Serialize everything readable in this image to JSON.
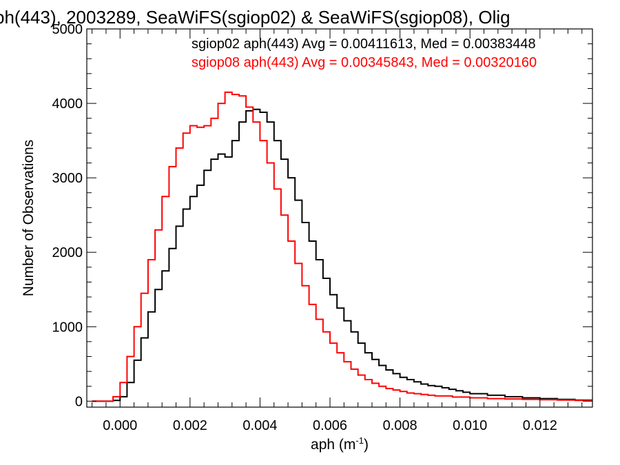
{
  "chart_data": {
    "type": "line",
    "title": "ph(443), 2003289, SeaWiFS(sgiop02) & SeaWiFS(sgiop08), Olig",
    "xlabel": "aph (m",
    "xlabel_sup": "-1",
    "xlabel_close": ")",
    "ylabel": "Number of Observations",
    "xlim": [
      -0.00095,
      0.0135
    ],
    "ylim": [
      -80,
      5000
    ],
    "x_ticks": [
      {
        "value": 0.0,
        "label": "0.000"
      },
      {
        "value": 0.002,
        "label": "0.002"
      },
      {
        "value": 0.004,
        "label": "0.004"
      },
      {
        "value": 0.006,
        "label": "0.006"
      },
      {
        "value": 0.008,
        "label": "0.008"
      },
      {
        "value": 0.01,
        "label": "0.010"
      },
      {
        "value": 0.012,
        "label": "0.012"
      }
    ],
    "y_ticks": [
      {
        "value": 0,
        "label": "0"
      },
      {
        "value": 1000,
        "label": "1000"
      },
      {
        "value": 2000,
        "label": "2000"
      },
      {
        "value": 3000,
        "label": "3000"
      },
      {
        "value": 4000,
        "label": "4000"
      },
      {
        "value": 5000,
        "label": "5000"
      }
    ],
    "grid": false,
    "legend_position": "top-right",
    "series": [
      {
        "name": "sgiop02 aph(443) Avg = 0.00411613, Med = 0.00383448",
        "color": "#000000",
        "points": [
          [
            -0.0008,
            0
          ],
          [
            -0.0004,
            0
          ],
          [
            -0.0002,
            10
          ],
          [
            0.0,
            60
          ],
          [
            0.0002,
            250
          ],
          [
            0.0004,
            550
          ],
          [
            0.0006,
            850
          ],
          [
            0.0008,
            1200
          ],
          [
            0.001,
            1500
          ],
          [
            0.0012,
            1750
          ],
          [
            0.0014,
            2050
          ],
          [
            0.0016,
            2350
          ],
          [
            0.0018,
            2580
          ],
          [
            0.002,
            2750
          ],
          [
            0.0022,
            2900
          ],
          [
            0.0024,
            3100
          ],
          [
            0.0026,
            3250
          ],
          [
            0.0028,
            3320
          ],
          [
            0.003,
            3280
          ],
          [
            0.0032,
            3500
          ],
          [
            0.0034,
            3750
          ],
          [
            0.0036,
            3900
          ],
          [
            0.0038,
            3920
          ],
          [
            0.004,
            3880
          ],
          [
            0.0042,
            3750
          ],
          [
            0.0044,
            3500
          ],
          [
            0.0046,
            3250
          ],
          [
            0.0048,
            3000
          ],
          [
            0.005,
            2700
          ],
          [
            0.0052,
            2400
          ],
          [
            0.0054,
            2150
          ],
          [
            0.0056,
            1900
          ],
          [
            0.0058,
            1650
          ],
          [
            0.006,
            1430
          ],
          [
            0.0062,
            1250
          ],
          [
            0.0064,
            1080
          ],
          [
            0.0066,
            930
          ],
          [
            0.0068,
            780
          ],
          [
            0.007,
            650
          ],
          [
            0.0072,
            560
          ],
          [
            0.0074,
            480
          ],
          [
            0.0076,
            420
          ],
          [
            0.0078,
            370
          ],
          [
            0.008,
            320
          ],
          [
            0.0082,
            290
          ],
          [
            0.0084,
            260
          ],
          [
            0.0086,
            230
          ],
          [
            0.0088,
            210
          ],
          [
            0.009,
            200
          ],
          [
            0.0092,
            180
          ],
          [
            0.0094,
            160
          ],
          [
            0.0096,
            140
          ],
          [
            0.0098,
            120
          ],
          [
            0.01,
            100
          ],
          [
            0.0105,
            80
          ],
          [
            0.011,
            60
          ],
          [
            0.0115,
            45
          ],
          [
            0.012,
            35
          ],
          [
            0.0125,
            25
          ],
          [
            0.013,
            15
          ],
          [
            0.0135,
            10
          ]
        ]
      },
      {
        "name": "sgiop08 aph(443) Avg = 0.00345843, Med = 0.00320160",
        "color": "#ff0000",
        "points": [
          [
            -0.0008,
            0
          ],
          [
            -0.0004,
            0
          ],
          [
            -0.0002,
            60
          ],
          [
            0.0,
            250
          ],
          [
            0.0002,
            600
          ],
          [
            0.0004,
            1000
          ],
          [
            0.0006,
            1450
          ],
          [
            0.0008,
            1900
          ],
          [
            0.001,
            2300
          ],
          [
            0.0012,
            2750
          ],
          [
            0.0014,
            3150
          ],
          [
            0.0016,
            3400
          ],
          [
            0.0018,
            3600
          ],
          [
            0.002,
            3700
          ],
          [
            0.0022,
            3680
          ],
          [
            0.0024,
            3700
          ],
          [
            0.0026,
            3800
          ],
          [
            0.0028,
            4000
          ],
          [
            0.003,
            4150
          ],
          [
            0.0032,
            4120
          ],
          [
            0.0034,
            4100
          ],
          [
            0.0036,
            3950
          ],
          [
            0.0038,
            3750
          ],
          [
            0.004,
            3500
          ],
          [
            0.0042,
            3200
          ],
          [
            0.0044,
            2850
          ],
          [
            0.0046,
            2500
          ],
          [
            0.0048,
            2150
          ],
          [
            0.005,
            1850
          ],
          [
            0.0052,
            1550
          ],
          [
            0.0054,
            1300
          ],
          [
            0.0056,
            1100
          ],
          [
            0.0058,
            930
          ],
          [
            0.006,
            780
          ],
          [
            0.0062,
            650
          ],
          [
            0.0064,
            530
          ],
          [
            0.0066,
            430
          ],
          [
            0.0068,
            350
          ],
          [
            0.007,
            290
          ],
          [
            0.0072,
            240
          ],
          [
            0.0074,
            200
          ],
          [
            0.0076,
            170
          ],
          [
            0.0078,
            150
          ],
          [
            0.008,
            130
          ],
          [
            0.0082,
            110
          ],
          [
            0.0084,
            100
          ],
          [
            0.0086,
            90
          ],
          [
            0.0088,
            80
          ],
          [
            0.009,
            70
          ],
          [
            0.0095,
            55
          ],
          [
            0.01,
            45
          ],
          [
            0.0105,
            35
          ],
          [
            0.011,
            30
          ],
          [
            0.0115,
            25
          ],
          [
            0.012,
            20
          ],
          [
            0.0125,
            15
          ],
          [
            0.013,
            10
          ],
          [
            0.0135,
            5
          ]
        ]
      }
    ]
  }
}
